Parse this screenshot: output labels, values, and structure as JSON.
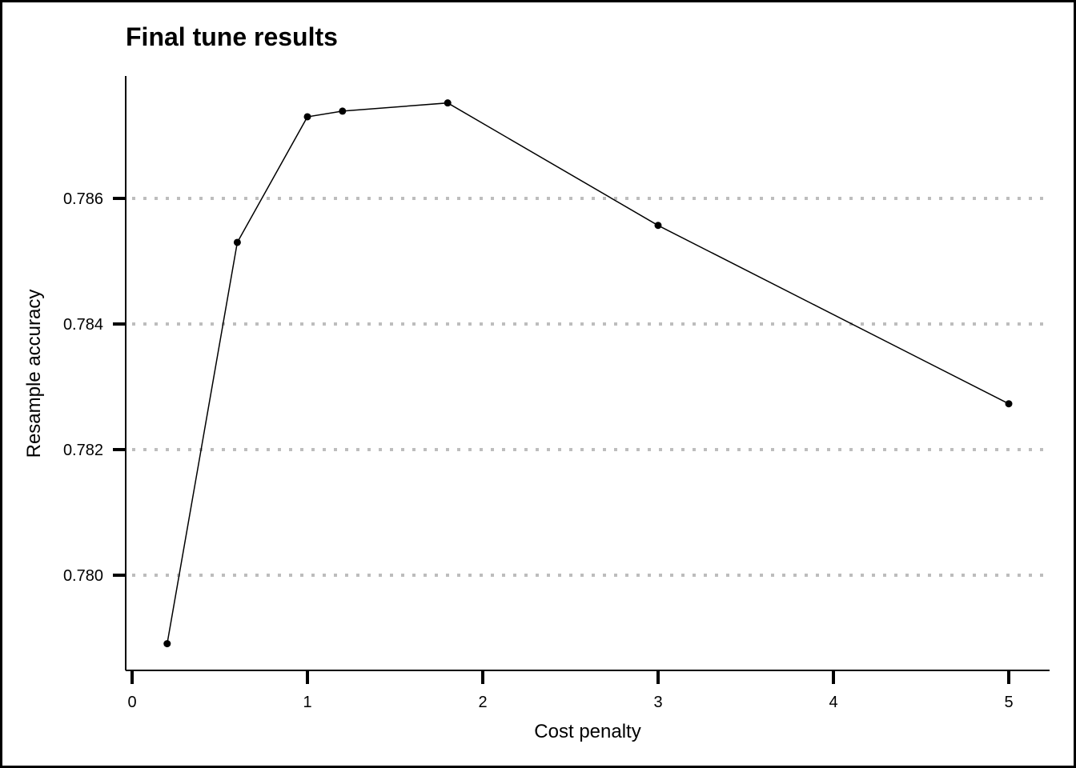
{
  "chart_data": {
    "type": "line",
    "title": "Final tune results",
    "xlabel": "Cost penalty",
    "ylabel": "Resample accuracy",
    "x": [
      0.2,
      0.6,
      1.0,
      1.2,
      1.8,
      3.0,
      5.0
    ],
    "y": [
      0.77891,
      0.7853,
      0.7873,
      0.78739,
      0.78752,
      0.78557,
      0.78273
    ],
    "xlim": [
      0,
      5
    ],
    "ylim": [
      0.7789,
      0.7875
    ],
    "xticks": [
      0,
      1,
      2,
      3,
      4,
      5
    ],
    "xtick_labels": [
      "0",
      "1",
      "2",
      "3",
      "4",
      "5"
    ],
    "yticks": [
      0.78,
      0.782,
      0.784,
      0.786
    ],
    "ytick_labels": [
      "0.780",
      "0.782",
      "0.784",
      "0.786"
    ],
    "grid": "horizontal dotted",
    "legend": "none",
    "colors": {
      "line": "#000000",
      "grid": "#bdbdbd",
      "points": "#000000"
    }
  }
}
